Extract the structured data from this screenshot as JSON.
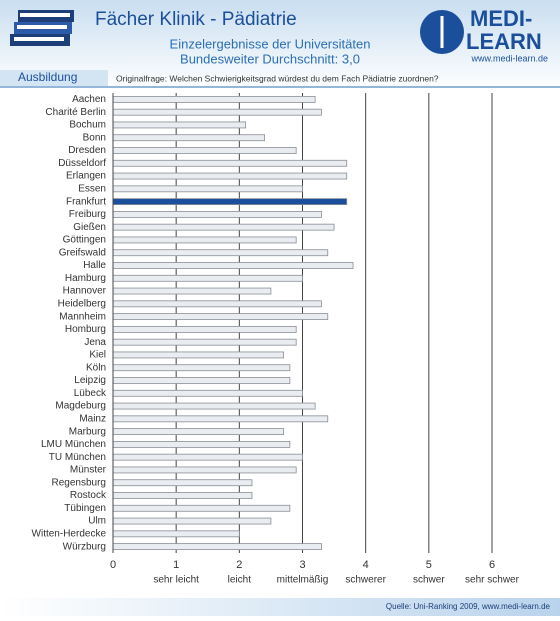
{
  "branding": {
    "logo_line1": "MEDI-",
    "logo_line2": "LEARN",
    "url": "www.medi-learn.de",
    "section": "Ausbildung"
  },
  "chart_data": {
    "type": "hbar",
    "title": "Fächer Klinik - Pädiatrie",
    "subtitle": "Einzelergebnisse der Universitäten",
    "average_note": "Bundesweiter Durchschnitt: 3,0",
    "question": "Originalfrage: Welchen Schwierigkeitsgrad würdest du dem Fach Pädiatrie zuordnen?",
    "source": "Quelle: Uni-Ranking 2009, www.medi-learn.de",
    "categories": [
      "Aachen",
      "Charité Berlin",
      "Bochum",
      "Bonn",
      "Dresden",
      "Düsseldorf",
      "Erlangen",
      "Essen",
      "Frankfurt",
      "Freiburg",
      "Gießen",
      "Göttingen",
      "Greifswald",
      "Halle",
      "Hamburg",
      "Hannover",
      "Heidelberg",
      "Mannheim",
      "Homburg",
      "Jena",
      "Kiel",
      "Köln",
      "Leipzig",
      "Lübeck",
      "Magdeburg",
      "Mainz",
      "Marburg",
      "LMU München",
      "TU München",
      "Münster",
      "Regensburg",
      "Rostock",
      "Tübingen",
      "Ulm",
      "Witten-Herdecke",
      "Würzburg"
    ],
    "values": [
      3.2,
      3.3,
      2.1,
      2.4,
      2.9,
      3.7,
      3.7,
      3.0,
      3.7,
      3.3,
      3.5,
      2.9,
      3.4,
      3.8,
      3.0,
      2.5,
      3.3,
      3.4,
      2.9,
      2.9,
      2.7,
      2.8,
      2.8,
      3.0,
      3.2,
      3.4,
      2.7,
      2.8,
      3.0,
      2.9,
      2.2,
      2.2,
      2.8,
      2.5,
      2.0,
      3.3
    ],
    "colors": [
      "#e9ecf0",
      "#e9ecf0",
      "#e9ecf0",
      "#e9ecf0",
      "#e9ecf0",
      "#e9ecf0",
      "#e9ecf0",
      "#e9ecf0",
      "#1b4f9c",
      "#e9ecf0",
      "#e9ecf0",
      "#e9ecf0",
      "#e9ecf0",
      "#e9ecf0",
      "#e9ecf0",
      "#e9ecf0",
      "#e9ecf0",
      "#e9ecf0",
      "#e9ecf0",
      "#e9ecf0",
      "#e9ecf0",
      "#e9ecf0",
      "#e9ecf0",
      "#e9ecf0",
      "#e9ecf0",
      "#e9ecf0",
      "#e9ecf0",
      "#e9ecf0",
      "#e9ecf0",
      "#e9ecf0",
      "#e9ecf0",
      "#e9ecf0",
      "#e9ecf0",
      "#e9ecf0",
      "#e9ecf0",
      "#e9ecf0"
    ],
    "xlim": [
      0,
      6
    ],
    "xticks": [
      0,
      1,
      2,
      3,
      4,
      5,
      6
    ],
    "xtick_names": [
      {
        "value": 1,
        "label": "sehr leicht"
      },
      {
        "value": 2,
        "label": "leicht"
      },
      {
        "value": 3,
        "label": "mittelmäßig"
      },
      {
        "value": 4,
        "label": "schwerer"
      },
      {
        "value": 5,
        "label": "schwer"
      },
      {
        "value": 6,
        "label": "sehr schwer"
      }
    ],
    "grid": true
  }
}
